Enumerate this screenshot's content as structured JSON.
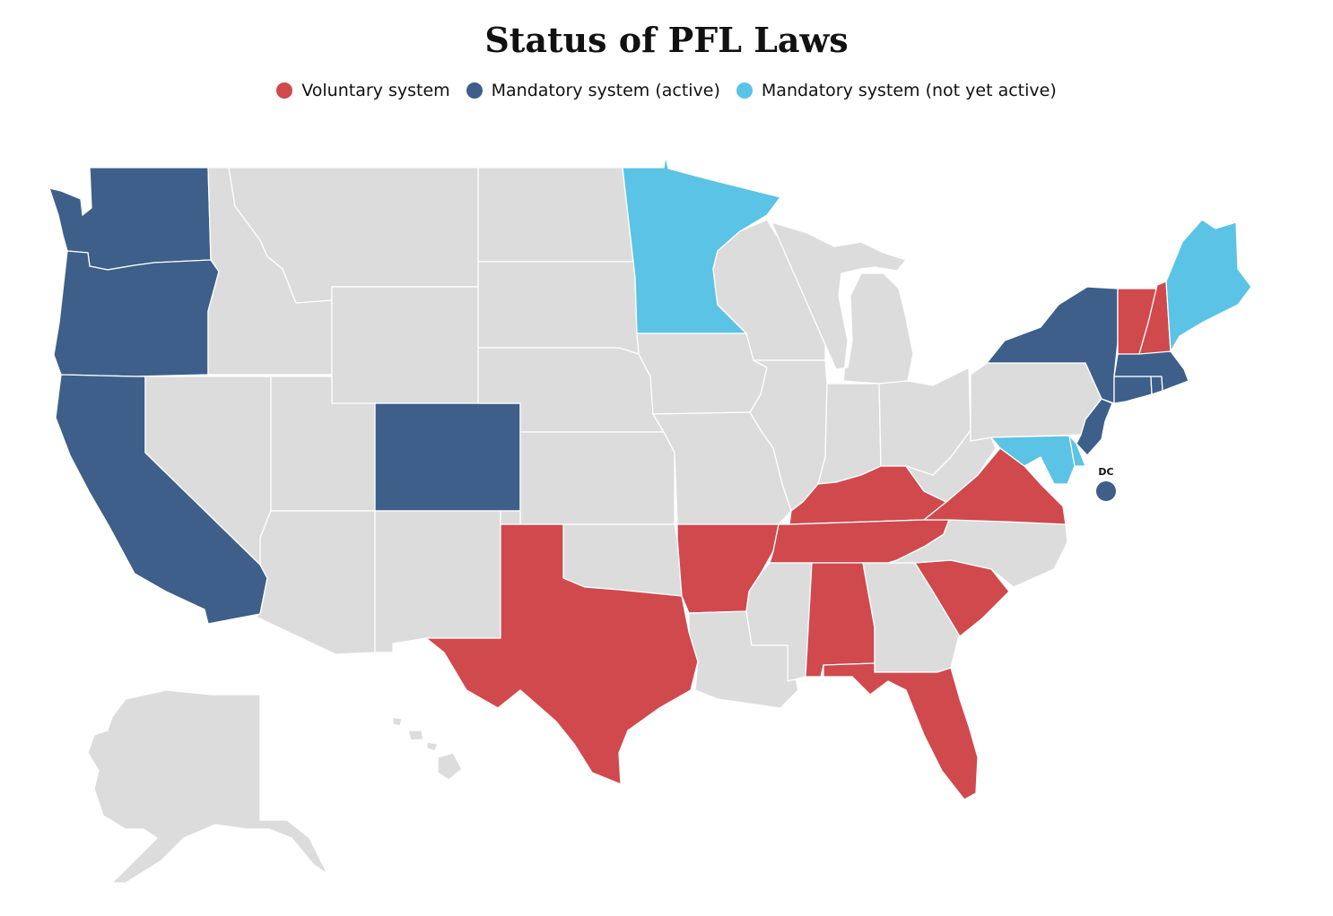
{
  "title": "Status of PFL Laws",
  "colors": {
    "voluntary": "#d0494d",
    "mandatory_active": "#3d5f8a",
    "mandatory_not_active": "#5bc3e5",
    "none": "#dcdcdc"
  },
  "legend": [
    {
      "label": "Voluntary system",
      "category": "voluntary"
    },
    {
      "label": "Mandatory system (active)",
      "category": "mandatory_active"
    },
    {
      "label": "Mandatory system (not yet active)",
      "category": "mandatory_not_active"
    }
  ],
  "dc_label": "DC",
  "states": {
    "WA": "mandatory_active",
    "OR": "mandatory_active",
    "CA": "mandatory_active",
    "CO": "mandatory_active",
    "NY": "mandatory_active",
    "NJ": "mandatory_active",
    "MA": "mandatory_active",
    "CT": "mandatory_active",
    "RI": "mandatory_active",
    "DC": "mandatory_active",
    "MN": "mandatory_not_active",
    "ME": "mandatory_not_active",
    "MD": "mandatory_not_active",
    "DE": "mandatory_not_active",
    "TX": "voluntary",
    "AR": "voluntary",
    "TN": "voluntary",
    "KY": "voluntary",
    "VA": "voluntary",
    "AL": "voluntary",
    "FL": "voluntary",
    "SC": "voluntary",
    "VT": "voluntary",
    "NH": "voluntary",
    "ID": "none",
    "MT": "none",
    "WY": "none",
    "NV": "none",
    "UT": "none",
    "AZ": "none",
    "NM": "none",
    "ND": "none",
    "SD": "none",
    "NE": "none",
    "KS": "none",
    "OK": "none",
    "IA": "none",
    "MO": "none",
    "LA": "none",
    "MS": "none",
    "WI": "none",
    "MI": "none",
    "IL": "none",
    "IN": "none",
    "OH": "none",
    "GA": "none",
    "NC": "none",
    "WV": "none",
    "PA": "none",
    "AK": "none",
    "HI": "none"
  }
}
